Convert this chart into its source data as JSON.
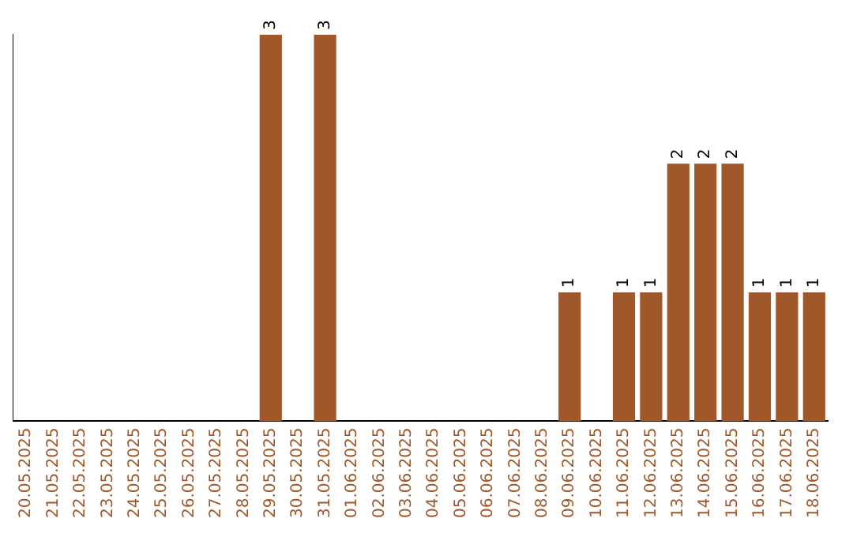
{
  "chart_data": {
    "type": "bar",
    "categories": [
      "20.05.2025",
      "21.05.2025",
      "22.05.2025",
      "23.05.2025",
      "24.05.2025",
      "25.05.2025",
      "26.05.2025",
      "27.05.2025",
      "28.05.2025",
      "29.05.2025",
      "30.05.2025",
      "31.05.2025",
      "01.06.2025",
      "02.06.2025",
      "03.06.2025",
      "04.06.2025",
      "05.06.2025",
      "06.06.2025",
      "07.06.2025",
      "08.06.2025",
      "09.06.2025",
      "10.06.2025",
      "11.06.2025",
      "12.06.2025",
      "13.06.2025",
      "14.06.2025",
      "15.06.2025",
      "16.06.2025",
      "17.06.2025",
      "18.06.2025"
    ],
    "values": [
      0,
      0,
      0,
      0,
      0,
      0,
      0,
      0,
      0,
      3,
      0,
      3,
      0,
      0,
      0,
      0,
      0,
      0,
      0,
      0,
      1,
      0,
      1,
      1,
      2,
      2,
      2,
      1,
      1,
      1
    ],
    "value_labels": [
      null,
      null,
      null,
      null,
      null,
      null,
      null,
      null,
      null,
      "3",
      null,
      "3",
      null,
      null,
      null,
      null,
      null,
      null,
      null,
      null,
      "1",
      null,
      "1",
      "1",
      "2",
      "2",
      "2",
      "1",
      "1",
      "1"
    ],
    "color": "#a0582a",
    "ylim": [
      0,
      3
    ],
    "tick_labels": "x",
    "grid": false,
    "legend": false
  }
}
